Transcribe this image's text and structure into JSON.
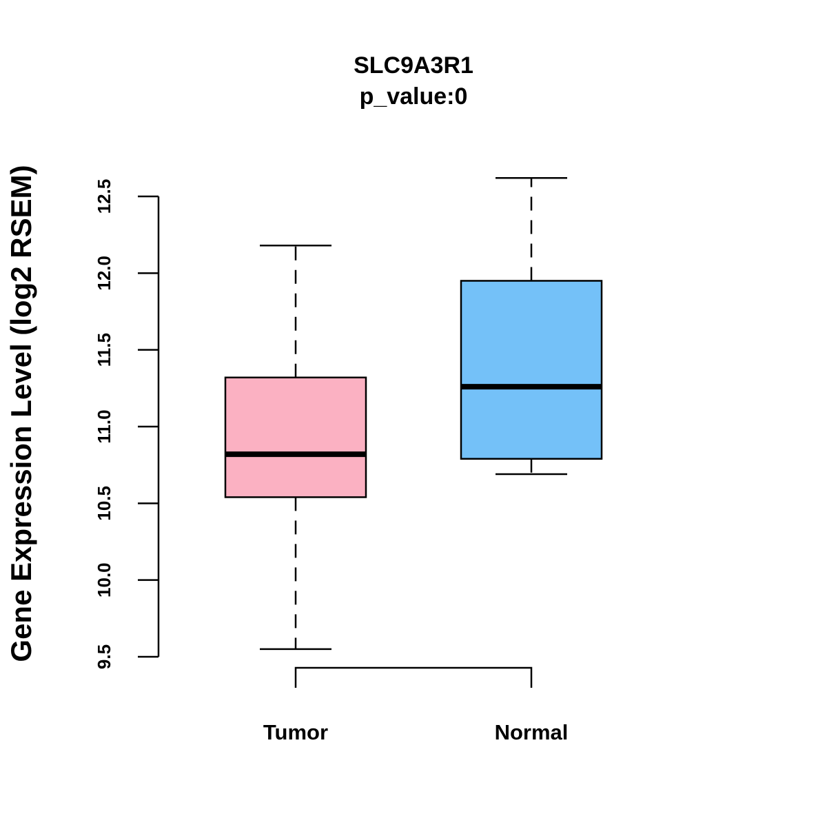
{
  "chart_data": {
    "type": "boxplot",
    "title": "SLC9A3R1",
    "subtitle": "p_value:0",
    "xlabel": "",
    "ylabel": "Gene Expression Level (log2 RSEM)",
    "ylim": [
      9.5,
      12.5
    ],
    "yticks": [
      "9.5",
      "10.0",
      "10.5",
      "11.0",
      "11.5",
      "12.0",
      "12.5"
    ],
    "grid": false,
    "categories": [
      "Tumor",
      "Normal"
    ],
    "boxes": [
      {
        "name": "Tumor",
        "min": 9.55,
        "q1": 10.54,
        "median": 10.82,
        "q3": 11.32,
        "max": 12.18,
        "color": "#FBB1C2"
      },
      {
        "name": "Normal",
        "min": 10.69,
        "q1": 10.79,
        "median": 11.26,
        "q3": 11.95,
        "max": 12.62,
        "color": "#74C1F8"
      }
    ]
  }
}
